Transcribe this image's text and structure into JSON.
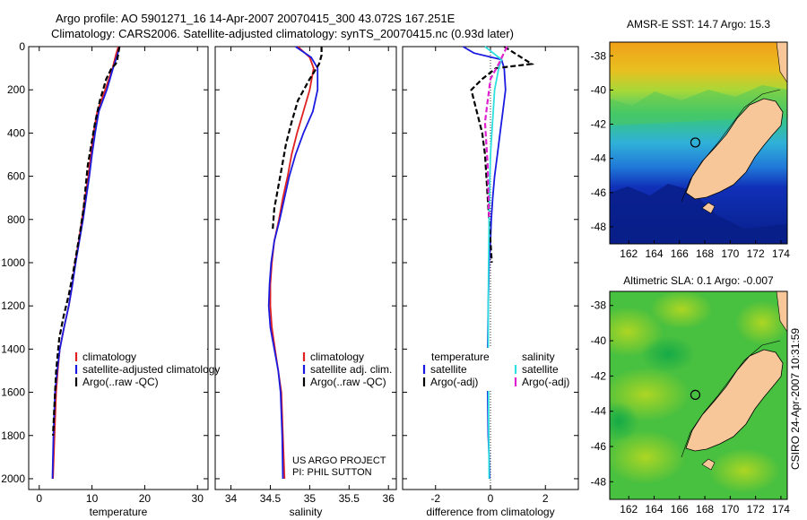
{
  "header": {
    "line1": "Argo profile: AO 5901271_16 14-Apr-2007 20070415_300 43.072S 167.251E",
    "line2": "Climatology: CARS2006. Satellite-adjusted climatology: synTS_20070415.nc (0.93d later)"
  },
  "footer": {
    "project": "US ARGO PROJECT",
    "pi": "PI: PHIL SUTTON",
    "timestamp": "CSIRO 24-Apr-2007 10:31:59"
  },
  "colors": {
    "climatology": "#e02020",
    "satellite": "#1a1ae0",
    "argo": "#000000",
    "salinity_satellite": "#30e0e0",
    "salinity_argo": "#e020d0",
    "land": "#f7c79a"
  },
  "chart_data": [
    {
      "type": "line",
      "xlabel": "temperature",
      "ylabel": "",
      "xlim": [
        -2,
        32
      ],
      "ylim": [
        2050,
        0
      ],
      "xticks": [
        "0",
        "10",
        "20",
        "30"
      ],
      "xtick_values": [
        0,
        10,
        20,
        30
      ],
      "yticks": [
        "0",
        "200",
        "400",
        "600",
        "800",
        "1000",
        "1200",
        "1400",
        "1600",
        "1800",
        "2000"
      ],
      "ytick_values": [
        0,
        200,
        400,
        600,
        800,
        1000,
        1200,
        1400,
        1600,
        1800,
        2000
      ],
      "legend": [
        "climatology",
        "satellite-adjusted climatology",
        "Argo(..raw -QC)"
      ],
      "legend_position": "lower-right",
      "series": [
        {
          "name": "climatology",
          "style": "solid",
          "color": "#e02020",
          "x": [
            15.0,
            14.5,
            13.9,
            12.5,
            11.0,
            10.3,
            9.8,
            9.3,
            8.7,
            8.1,
            7.5,
            6.8,
            6.3,
            5.6,
            4.7,
            3.9,
            3.5,
            3.2,
            2.9,
            2.6
          ],
          "y": [
            0,
            40,
            100,
            200,
            300,
            400,
            500,
            600,
            700,
            800,
            900,
            1000,
            1100,
            1200,
            1300,
            1400,
            1500,
            1600,
            1800,
            2000
          ]
        },
        {
          "name": "satellite-adjusted climatology",
          "style": "solid",
          "color": "#1a1ae0",
          "x": [
            15.2,
            14.8,
            14.0,
            12.8,
            11.3,
            10.6,
            10.0,
            9.5,
            8.9,
            8.3,
            7.6,
            6.9,
            6.3,
            5.6,
            4.7,
            3.9,
            3.4,
            3.0,
            2.7,
            2.5
          ],
          "y": [
            0,
            40,
            100,
            200,
            300,
            400,
            500,
            600,
            700,
            800,
            900,
            1000,
            1100,
            1200,
            1300,
            1400,
            1500,
            1600,
            1800,
            2000
          ]
        },
        {
          "name": "Argo(..raw -QC)",
          "style": "dashed",
          "color": "#000000",
          "x": [
            15.2,
            15.0,
            14.8,
            14.5,
            13.7,
            12.7,
            11.5,
            10.6,
            9.9,
            9.2,
            8.8,
            8.4,
            7.8,
            7.1,
            6.4,
            5.6,
            4.6,
            3.8,
            3.2,
            2.9,
            2.6
          ],
          "y": [
            0,
            30,
            60,
            80,
            100,
            150,
            250,
            350,
            450,
            550,
            650,
            750,
            850,
            950,
            1050,
            1150,
            1250,
            1350,
            1500,
            1650,
            1800
          ]
        }
      ]
    },
    {
      "type": "line",
      "xlabel": "salinity",
      "ylabel": "",
      "xlim": [
        33.8,
        36.1
      ],
      "ylim": [
        2050,
        0
      ],
      "xticks": [
        "34",
        "34.5",
        "35",
        "35.5",
        "36"
      ],
      "xtick_values": [
        34,
        34.5,
        35,
        35.5,
        36
      ],
      "legend": [
        "climatology",
        "satellite adj. clim.",
        "Argo(..raw -QC)"
      ],
      "legend_position": "lower-right",
      "series": [
        {
          "name": "climatology",
          "style": "solid",
          "color": "#e02020",
          "x": [
            34.85,
            35.0,
            35.05,
            35.0,
            34.92,
            34.84,
            34.77,
            34.72,
            34.66,
            34.61,
            34.55,
            34.52,
            34.5,
            34.5,
            34.52,
            34.56,
            34.6,
            34.64,
            34.66,
            34.68
          ],
          "y": [
            0,
            50,
            100,
            200,
            300,
            400,
            500,
            600,
            700,
            800,
            900,
            1000,
            1100,
            1200,
            1300,
            1400,
            1500,
            1600,
            1800,
            2000
          ]
        },
        {
          "name": "satellite adj. clim.",
          "style": "solid",
          "color": "#1a1ae0",
          "x": [
            34.82,
            35.02,
            35.1,
            35.1,
            35.04,
            34.92,
            34.82,
            34.74,
            34.68,
            34.62,
            34.55,
            34.51,
            34.49,
            34.48,
            34.5,
            34.55,
            34.6,
            34.63,
            34.65,
            34.66
          ],
          "y": [
            0,
            50,
            100,
            200,
            300,
            400,
            500,
            600,
            700,
            800,
            900,
            1000,
            1100,
            1200,
            1300,
            1400,
            1500,
            1600,
            1800,
            2000
          ]
        },
        {
          "name": "Argo(..raw -QC)",
          "style": "dashed",
          "color": "#000000",
          "x": [
            35.15,
            35.15,
            35.12,
            35.0,
            34.85,
            34.77,
            34.7,
            34.65,
            34.6,
            34.55,
            34.53
          ],
          "y": [
            0,
            40,
            80,
            150,
            250,
            350,
            450,
            550,
            650,
            750,
            850
          ]
        }
      ]
    },
    {
      "type": "line",
      "xlabel": "difference from climatology",
      "ylabel": "",
      "xlim": [
        -3.2,
        3.2
      ],
      "ylim": [
        2050,
        0
      ],
      "xticks": [
        "-2",
        "0",
        "2"
      ],
      "xtick_values": [
        -2,
        0,
        2
      ],
      "legend_headings": [
        "temperature",
        "salinity"
      ],
      "legend": [
        "satellite",
        "Argo(-adj)",
        "satellite",
        "Argo(-adj)"
      ],
      "legend_position": "lower-center",
      "series": [
        {
          "name": "temperature satellite",
          "style": "solid",
          "color": "#1a1ae0",
          "x": [
            -1.0,
            -0.6,
            0.4,
            0.5,
            0.55,
            0.45,
            0.35,
            0.25,
            0.15,
            0.08,
            0.03,
            0.0,
            -0.05,
            -0.08,
            -0.1,
            -0.1,
            -0.08,
            -0.05,
            -0.03
          ],
          "y": [
            0,
            30,
            60,
            100,
            200,
            300,
            400,
            500,
            600,
            700,
            800,
            900,
            1000,
            1200,
            1400,
            1600,
            1800,
            1900,
            2000
          ]
        },
        {
          "name": "temperature Argo(-adj)",
          "style": "dashed",
          "color": "#000000",
          "x": [
            0.5,
            1.5,
            0.2,
            -0.3,
            -0.7,
            -0.5,
            -0.3,
            -0.2,
            -0.15,
            -0.1,
            -0.05,
            0.0,
            0.05
          ],
          "y": [
            0,
            80,
            100,
            150,
            200,
            300,
            400,
            500,
            600,
            700,
            800,
            900,
            1000
          ]
        },
        {
          "name": "salinity satellite",
          "style": "solid",
          "color": "#30e0e0",
          "x": [
            -0.2,
            0.4,
            0.3,
            0.15,
            0.1,
            0.05,
            0.0,
            -0.02,
            -0.05,
            -0.07,
            -0.08,
            -0.08,
            -0.07,
            -0.05
          ],
          "y": [
            0,
            60,
            100,
            200,
            300,
            400,
            500,
            600,
            800,
            1000,
            1200,
            1400,
            1700,
            2000
          ]
        },
        {
          "name": "salinity Argo(-adj)",
          "style": "dashed",
          "color": "#e020d0",
          "x": [
            0.6,
            0.3,
            0.0,
            -0.1,
            -0.2,
            -0.15,
            -0.1,
            -0.08,
            -0.05
          ],
          "y": [
            0,
            80,
            150,
            250,
            350,
            450,
            550,
            650,
            800
          ]
        }
      ]
    },
    {
      "type": "heatmap",
      "title": "AMSR-E SST: 14.7 Argo: 15.3",
      "xlim": [
        160.5,
        174.5
      ],
      "ylim": [
        -49,
        -37.2
      ],
      "xticks": [
        "162",
        "164",
        "166",
        "168",
        "170",
        "172",
        "174"
      ],
      "xtick_values": [
        162,
        164,
        166,
        168,
        170,
        172,
        174
      ],
      "yticks": [
        "-38",
        "-40",
        "-42",
        "-44",
        "-46",
        "-48"
      ],
      "ytick_values": [
        -38,
        -40,
        -42,
        -44,
        -46,
        -48
      ],
      "marker": {
        "lon": 167.25,
        "lat": -43.07
      }
    },
    {
      "type": "heatmap",
      "title": "Altimetric SLA: 0.1 Argo: -0.007",
      "xlim": [
        160.5,
        174.5
      ],
      "ylim": [
        -49,
        -37.2
      ],
      "xticks": [
        "162",
        "164",
        "166",
        "168",
        "170",
        "172",
        "174"
      ],
      "xtick_values": [
        162,
        164,
        166,
        168,
        170,
        172,
        174
      ],
      "yticks": [
        "-38",
        "-40",
        "-42",
        "-44",
        "-46",
        "-48"
      ],
      "ytick_values": [
        -38,
        -40,
        -42,
        -44,
        -46,
        -48
      ],
      "marker": {
        "lon": 167.25,
        "lat": -43.07
      }
    }
  ]
}
